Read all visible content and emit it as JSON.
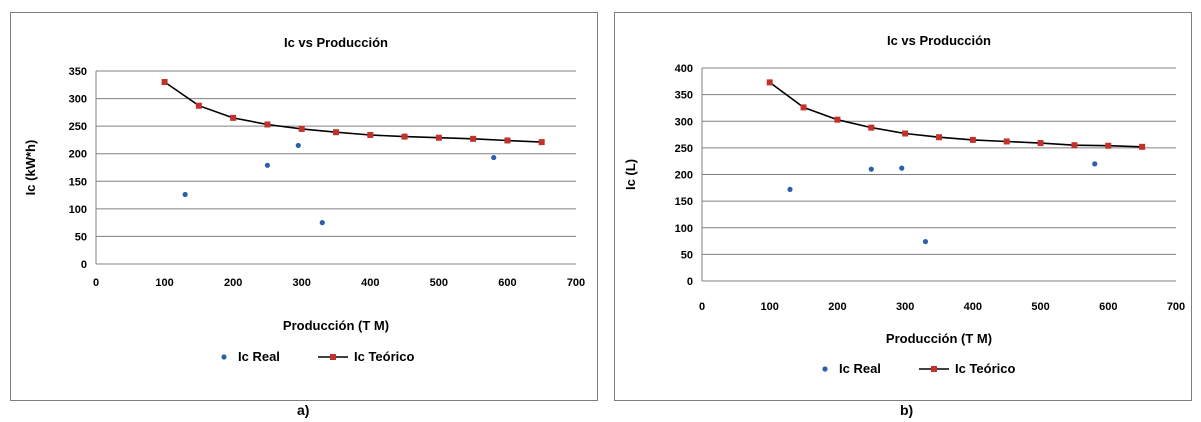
{
  "chart_data": [
    {
      "panel_label": "a)",
      "type": "line",
      "title": "Ic vs Producción",
      "xlabel": "Producción (T M)",
      "ylabel": "Ic (kW*h)",
      "xlim": [
        0,
        700
      ],
      "ylim": [
        0,
        350
      ],
      "xticks": [
        0,
        100,
        200,
        300,
        400,
        500,
        600,
        700
      ],
      "yticks": [
        0,
        50,
        100,
        150,
        200,
        250,
        300,
        350
      ],
      "grid": "horizontal",
      "legend": "bottom",
      "series": [
        {
          "name": "Ic Real",
          "kind": "scatter",
          "color": "#2e5fa8",
          "points": [
            [
              130,
              126
            ],
            [
              250,
              179
            ],
            [
              295,
              215
            ],
            [
              330,
              75
            ],
            [
              580,
              193
            ]
          ]
        },
        {
          "name": "Ic Teórico",
          "kind": "line",
          "color": "#c0322b",
          "points": [
            [
              100,
              330
            ],
            [
              150,
              287
            ],
            [
              200,
              265
            ],
            [
              250,
              253
            ],
            [
              300,
              245
            ],
            [
              350,
              239
            ],
            [
              400,
              234
            ],
            [
              450,
              231
            ],
            [
              500,
              229
            ],
            [
              550,
              227
            ],
            [
              600,
              224
            ],
            [
              650,
              221
            ]
          ]
        }
      ]
    },
    {
      "panel_label": "b)",
      "type": "line",
      "title": "Ic vs Producción",
      "xlabel": "Producción (T M)",
      "ylabel": "Ic (L)",
      "xlim": [
        0,
        700
      ],
      "ylim": [
        0,
        400
      ],
      "xticks": [
        0,
        100,
        200,
        300,
        400,
        500,
        600,
        700
      ],
      "yticks": [
        0,
        50,
        100,
        150,
        200,
        250,
        300,
        350,
        400
      ],
      "grid": "horizontal",
      "legend": "bottom",
      "series": [
        {
          "name": "Ic Real",
          "kind": "scatter",
          "color": "#2e5fa8",
          "points": [
            [
              130,
              172
            ],
            [
              250,
              210
            ],
            [
              295,
              212
            ],
            [
              330,
              74
            ],
            [
              580,
              220
            ]
          ]
        },
        {
          "name": "Ic Teórico",
          "kind": "line",
          "color": "#c0322b",
          "points": [
            [
              100,
              373
            ],
            [
              150,
              326
            ],
            [
              200,
              303
            ],
            [
              250,
              288
            ],
            [
              300,
              277
            ],
            [
              350,
              270
            ],
            [
              400,
              265
            ],
            [
              450,
              262
            ],
            [
              500,
              259
            ],
            [
              550,
              255
            ],
            [
              600,
              254
            ],
            [
              650,
              252
            ]
          ]
        }
      ]
    }
  ]
}
